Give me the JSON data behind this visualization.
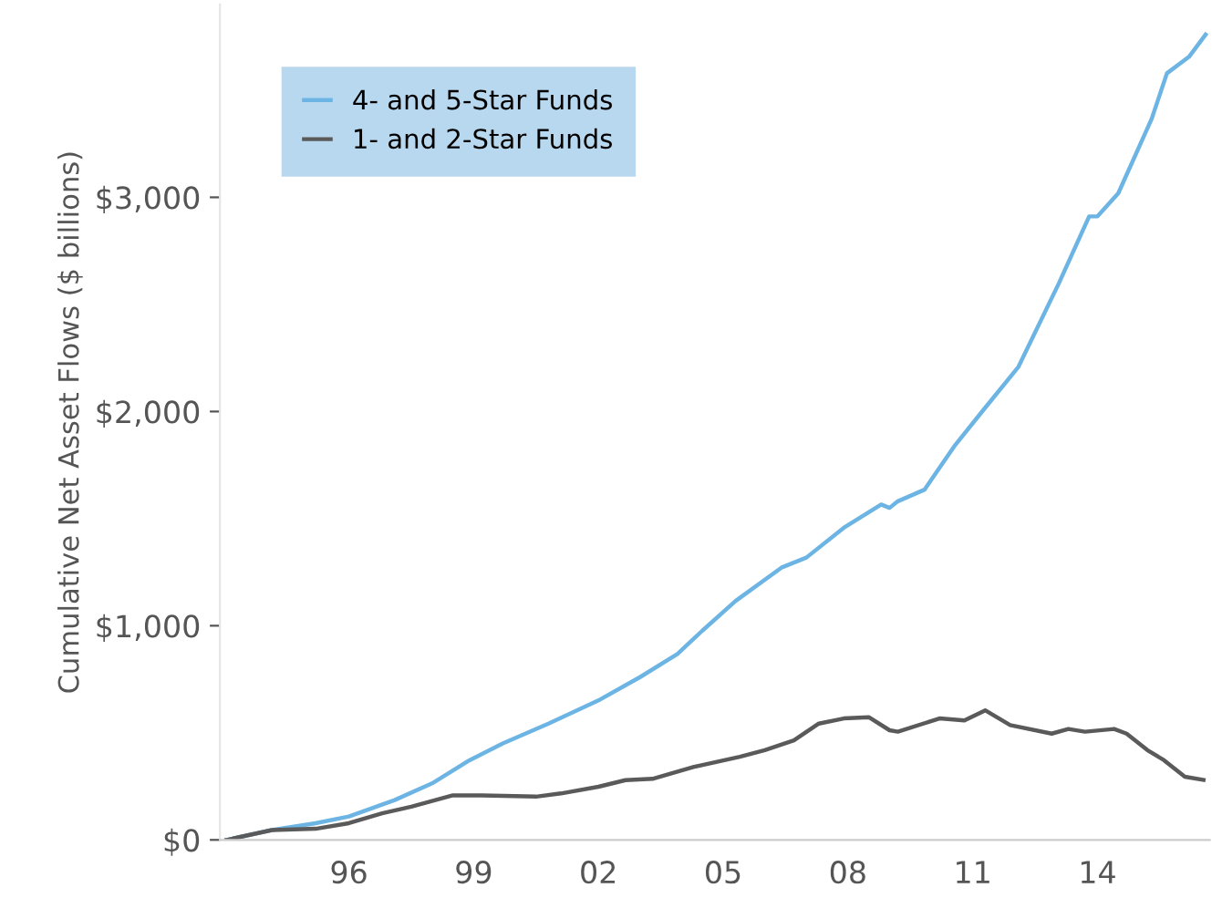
{
  "chart_data": {
    "type": "line",
    "ylabel": "Cumulative Net Asset Flows ($ billions)",
    "xlim": [
      1992.9,
      2016.7
    ],
    "xticks": [
      {
        "value": 1996,
        "label": "96"
      },
      {
        "value": 1999,
        "label": "99"
      },
      {
        "value": 2002,
        "label": "02"
      },
      {
        "value": 2005,
        "label": "05"
      },
      {
        "value": 2008,
        "label": "08"
      },
      {
        "value": 2011,
        "label": "11"
      },
      {
        "value": 2014,
        "label": "14"
      }
    ],
    "ylim": [
      0,
      3900
    ],
    "yticks": [
      {
        "value": 0,
        "label": "$0"
      },
      {
        "value": 1000,
        "label": "$1,000"
      },
      {
        "value": 2000,
        "label": "$2,000"
      },
      {
        "value": 3000,
        "label": "$3,000"
      }
    ],
    "grid": false,
    "legend": "top left",
    "series": [
      {
        "name": "4- and 5-Star Funds",
        "color": "#6cb4e4",
        "x": [
          1993.06,
          1994.15,
          1995.2,
          1996.0,
          1997.1,
          1998.0,
          1998.9,
          1999.7,
          2000.8,
          2002.0,
          2003.0,
          2003.9,
          2004.5,
          2005.3,
          2006.4,
          2007.0,
          2007.9,
          2008.8,
          2009.0,
          2009.2,
          2009.84,
          2010.55,
          2011.26,
          2012.1,
          2013.07,
          2013.8,
          2014.0,
          2014.5,
          2015.3,
          2015.67,
          2016.2,
          2016.6
        ],
        "values": [
          0,
          46,
          78,
          109,
          186,
          264,
          372,
          450,
          543,
          651,
          760,
          868,
          977,
          1116,
          1271,
          1318,
          1457,
          1566,
          1550,
          1581,
          1635,
          1836,
          2008,
          2209,
          2598,
          2911,
          2911,
          3019,
          3365,
          3579,
          3656,
          3760
        ]
      },
      {
        "name": "1- and 2-Star Funds",
        "color": "#5a5a5a",
        "x": [
          1993.06,
          1994.15,
          1995.2,
          1996.0,
          1996.8,
          1997.5,
          1998.5,
          1999.2,
          2000.5,
          2001.1,
          2002.0,
          2002.65,
          2003.3,
          2004.3,
          2005.4,
          2006.0,
          2006.7,
          2007.3,
          2007.9,
          2008.5,
          2009.0,
          2009.2,
          2010.2,
          2010.8,
          2011.3,
          2011.9,
          2012.9,
          2013.3,
          2013.7,
          2014.4,
          2014.7,
          2015.2,
          2015.6,
          2016.1,
          2016.55
        ],
        "values": [
          0,
          46,
          52,
          78,
          124,
          155,
          208,
          208,
          202,
          217,
          248,
          279,
          285,
          341,
          388,
          419,
          465,
          543,
          567,
          573,
          512,
          505,
          567,
          558,
          605,
          536,
          496,
          518,
          505,
          518,
          496,
          419,
          372,
          295,
          280
        ]
      }
    ]
  }
}
